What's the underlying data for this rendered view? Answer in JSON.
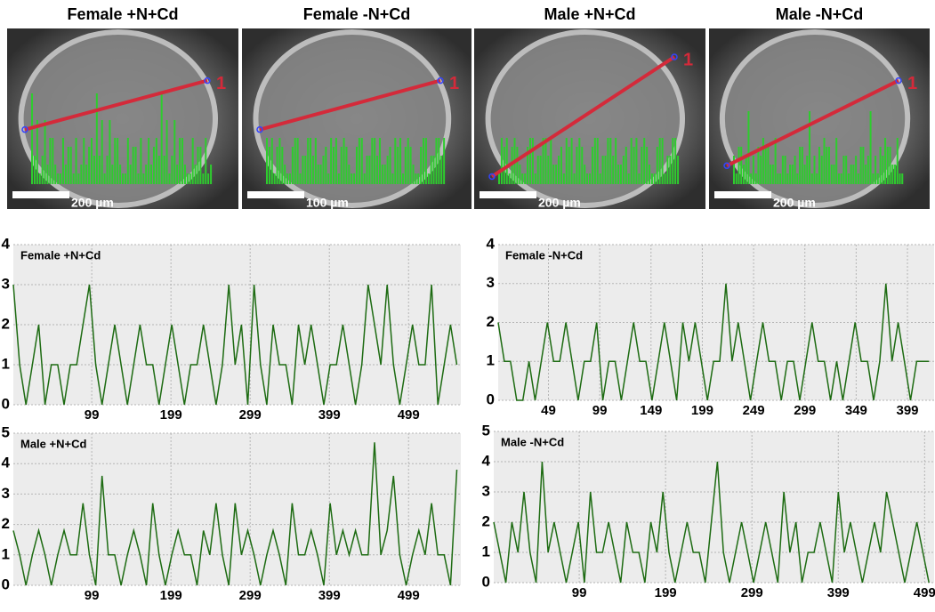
{
  "images": [
    {
      "title": "Female +N+Cd",
      "scale": "200 µm",
      "marker": "1"
    },
    {
      "title": "Female -N+Cd",
      "scale": "100 µm",
      "marker": "1"
    },
    {
      "title": "Male +N+Cd",
      "scale": "200 µm",
      "marker": "1"
    },
    {
      "title": "Male -N+Cd",
      "scale": "200 µm",
      "marker": "1"
    }
  ],
  "chart_data": [
    {
      "type": "line",
      "title": "Female +N+Cd",
      "color": "#1d6b12",
      "grid": true,
      "xlim": [
        0,
        565
      ],
      "ylim": [
        0,
        4
      ],
      "xticks": [
        99,
        199,
        299,
        399,
        499
      ],
      "yticks": [
        0,
        1,
        2,
        3,
        4
      ],
      "x": [
        0,
        8,
        16,
        24,
        32,
        40,
        48,
        56,
        64,
        72,
        80,
        88,
        96,
        104,
        112,
        120,
        128,
        136,
        144,
        152,
        160,
        168,
        176,
        184,
        192,
        200,
        208,
        216,
        224,
        232,
        240,
        248,
        256,
        264,
        272,
        280,
        288,
        296,
        304,
        312,
        320,
        328,
        336,
        344,
        352,
        360,
        368,
        376,
        384,
        392,
        400,
        408,
        416,
        424,
        432,
        440,
        448,
        456,
        464,
        472,
        480,
        488,
        496,
        504,
        512,
        520,
        528,
        536,
        544,
        552,
        560
      ],
      "values": [
        3,
        1,
        0,
        1,
        2,
        0,
        1,
        1,
        0,
        1,
        1,
        2,
        3,
        1,
        0,
        1,
        2,
        1,
        0,
        1,
        2,
        1,
        1,
        0,
        1,
        2,
        1,
        0,
        1,
        1,
        2,
        1,
        0,
        1,
        3,
        1,
        2,
        0,
        3,
        1,
        0,
        2,
        1,
        1,
        0,
        2,
        1,
        2,
        1,
        0,
        1,
        1,
        2,
        1,
        0,
        1,
        3,
        2,
        1,
        3,
        1,
        0,
        1,
        2,
        1,
        1,
        3,
        0,
        1,
        2,
        1
      ]
    },
    {
      "type": "line",
      "title": "Female -N+Cd",
      "color": "#1d6b12",
      "grid": true,
      "xlim": [
        0,
        425
      ],
      "ylim": [
        0,
        4
      ],
      "xticks": [
        49,
        99,
        149,
        199,
        249,
        299,
        349,
        399
      ],
      "yticks": [
        0,
        1,
        2,
        3,
        4
      ],
      "x": [
        0,
        6,
        12,
        18,
        24,
        30,
        36,
        42,
        48,
        54,
        60,
        66,
        72,
        78,
        84,
        90,
        96,
        102,
        108,
        114,
        120,
        126,
        132,
        138,
        144,
        150,
        156,
        162,
        168,
        174,
        180,
        186,
        192,
        198,
        204,
        210,
        216,
        222,
        228,
        234,
        240,
        246,
        252,
        258,
        264,
        270,
        276,
        282,
        288,
        294,
        300,
        306,
        312,
        318,
        324,
        330,
        336,
        342,
        348,
        354,
        360,
        366,
        372,
        378,
        384,
        390,
        396,
        402,
        408,
        414,
        420
      ],
      "values": [
        2,
        1,
        1,
        0,
        0,
        1,
        0,
        1,
        2,
        1,
        1,
        2,
        1,
        0,
        1,
        1,
        2,
        0,
        1,
        1,
        0,
        1,
        2,
        1,
        1,
        0,
        1,
        2,
        1,
        0,
        2,
        1,
        2,
        1,
        0,
        1,
        1,
        3,
        1,
        2,
        1,
        0,
        1,
        2,
        1,
        1,
        0,
        1,
        1,
        0,
        1,
        2,
        1,
        1,
        0,
        1,
        0,
        1,
        2,
        1,
        1,
        0,
        1,
        3,
        1,
        2,
        1,
        0,
        1,
        1,
        1
      ]
    },
    {
      "type": "line",
      "title": "Male +N+Cd",
      "color": "#1d6b12",
      "grid": true,
      "xlim": [
        0,
        565
      ],
      "ylim": [
        0,
        5
      ],
      "xticks": [
        99,
        199,
        299,
        399,
        499
      ],
      "yticks": [
        0,
        1,
        2,
        3,
        4,
        5
      ],
      "x": [
        0,
        8,
        16,
        24,
        32,
        40,
        48,
        56,
        64,
        72,
        80,
        88,
        96,
        104,
        112,
        120,
        128,
        136,
        144,
        152,
        160,
        168,
        176,
        184,
        192,
        200,
        208,
        216,
        224,
        232,
        240,
        248,
        256,
        264,
        272,
        280,
        288,
        296,
        304,
        312,
        320,
        328,
        336,
        344,
        352,
        360,
        368,
        376,
        384,
        392,
        400,
        408,
        416,
        424,
        432,
        440,
        448,
        456,
        464,
        472,
        480,
        488,
        496,
        504,
        512,
        520,
        528,
        536,
        544,
        552,
        560
      ],
      "values": [
        1.8,
        1,
        0,
        1,
        1.8,
        1,
        0,
        1,
        1.8,
        1,
        1,
        2.7,
        1,
        0,
        3.6,
        1,
        1,
        0,
        1,
        1.8,
        1,
        0,
        2.7,
        1,
        0,
        1,
        1.8,
        1,
        1,
        0,
        1.8,
        1,
        2.7,
        1,
        0,
        2.7,
        1,
        1.8,
        1,
        0,
        1,
        1.8,
        1,
        0,
        2.7,
        1,
        1,
        1.8,
        1,
        0,
        2.7,
        1,
        1.8,
        1,
        1.8,
        1,
        1,
        4.7,
        1,
        1.8,
        3.6,
        1,
        0,
        1,
        1.8,
        1,
        2.7,
        1,
        1,
        0,
        3.8
      ]
    },
    {
      "type": "line",
      "title": "Male -N+Cd",
      "color": "#1d6b12",
      "grid": true,
      "xlim": [
        0,
        510
      ],
      "ylim": [
        0,
        5
      ],
      "xticks": [
        99,
        199,
        299,
        399,
        499
      ],
      "yticks": [
        0,
        1,
        2,
        3,
        4,
        5
      ],
      "x": [
        0,
        7,
        14,
        21,
        28,
        35,
        42,
        49,
        56,
        63,
        70,
        77,
        84,
        91,
        98,
        105,
        112,
        119,
        126,
        133,
        140,
        147,
        154,
        161,
        168,
        175,
        182,
        189,
        196,
        203,
        210,
        217,
        224,
        231,
        238,
        245,
        252,
        259,
        266,
        273,
        280,
        287,
        294,
        301,
        308,
        315,
        322,
        329,
        336,
        343,
        350,
        357,
        364,
        371,
        378,
        385,
        392,
        399,
        406,
        413,
        420,
        427,
        434,
        441,
        448,
        455,
        462,
        469,
        476,
        483,
        490,
        497,
        504
      ],
      "values": [
        2,
        1,
        0,
        2,
        1,
        3,
        1,
        0,
        4,
        1,
        2,
        1,
        0,
        1,
        2,
        0,
        3,
        1,
        1,
        2,
        1,
        0,
        2,
        1,
        1,
        0,
        2,
        1,
        3,
        1,
        0,
        1,
        2,
        1,
        1,
        0,
        2,
        4,
        1,
        0,
        1,
        2,
        1,
        0,
        1,
        2,
        1,
        0,
        3,
        1,
        2,
        0,
        1,
        1,
        2,
        1,
        0,
        3,
        1,
        2,
        1,
        0,
        1,
        2,
        1,
        3,
        2,
        1,
        0,
        1,
        2,
        1,
        0
      ]
    }
  ]
}
